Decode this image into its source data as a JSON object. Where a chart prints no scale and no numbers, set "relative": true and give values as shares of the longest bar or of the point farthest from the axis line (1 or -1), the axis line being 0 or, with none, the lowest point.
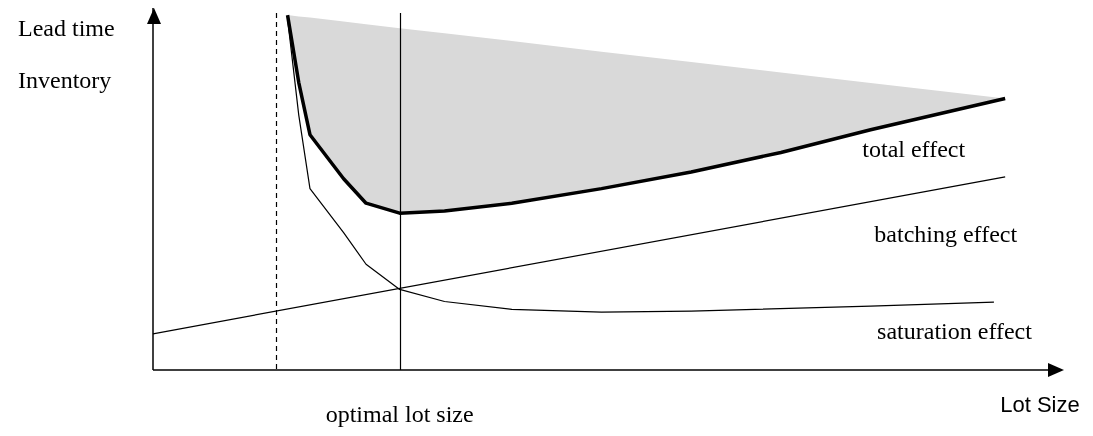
{
  "chart_data": {
    "type": "line",
    "relative": true,
    "xlabel": "Lot Size",
    "ylabel": "Lead time\nInventory",
    "marker": "none",
    "categories": [
      null,
      null,
      null,
      null,
      null,
      null,
      null,
      null,
      null,
      null,
      null,
      null,
      null,
      null,
      null,
      null,
      null,
      null,
      null,
      null,
      null,
      null,
      null,
      null,
      null,
      null,
      null,
      null,
      null,
      null,
      null,
      null,
      null,
      null,
      null,
      null,
      null,
      null,
      null,
      null,
      null,
      null,
      null,
      null,
      null,
      null,
      null,
      null,
      null,
      null,
      null,
      null,
      null,
      null,
      null,
      null,
      null,
      null,
      null,
      null,
      null,
      null,
      null,
      null,
      null,
      null,
      null,
      null,
      null,
      null,
      null,
      null,
      null,
      null,
      null,
      null,
      null,
      null,
      null,
      null,
      null
    ],
    "annotations": [
      "optimal lot size"
    ],
    "series": [
      {
        "name": "total effect",
        "color": "#000000",
        "values": [
          null,
          null,
          null,
          null,
          null,
          null,
          null,
          null,
          null,
          null,
          null,
          null,
          1.0,
          0.81,
          0.663,
          null,
          null,
          0.539,
          null,
          0.47,
          null,
          null,
          0.442,
          null,
          null,
          null,
          0.448,
          null,
          null,
          null,
          null,
          null,
          0.47,
          null,
          null,
          null,
          null,
          null,
          null,
          null,
          0.511,
          null,
          null,
          null,
          null,
          null,
          null,
          null,
          0.558,
          null,
          null,
          null,
          null,
          null,
          null,
          null,
          0.613,
          null,
          null,
          null,
          null,
          null,
          null,
          null,
          0.677,
          null,
          null,
          null,
          null,
          null,
          null,
          null,
          null,
          null,
          null,
          null,
          0.765,
          null,
          null,
          null,
          null
        ],
        "lower": [
          null,
          null,
          null,
          null,
          null,
          null,
          null,
          null,
          null,
          null,
          null,
          null,
          1.0,
          0.81,
          0.663,
          null,
          null,
          0.539,
          null,
          0.47,
          null,
          null,
          0.442,
          null,
          null,
          null,
          0.448,
          null,
          null,
          null,
          null,
          null,
          0.47,
          null,
          null,
          null,
          null,
          null,
          null,
          null,
          0.511,
          null,
          null,
          null,
          null,
          null,
          null,
          null,
          0.558,
          null,
          null,
          null,
          null,
          null,
          null,
          null,
          0.613,
          null,
          null,
          null,
          null,
          null,
          null,
          null,
          0.677,
          null,
          null,
          null,
          null,
          null,
          null,
          null,
          null,
          null,
          null,
          null,
          0.765,
          null,
          null,
          null,
          null
        ],
        "upper": [
          null,
          null,
          null,
          null,
          null,
          null,
          null,
          null,
          null,
          null,
          null,
          null,
          1.0,
          0.996,
          0.993,
          null,
          null,
          0.982,
          null,
          0.974,
          null,
          null,
          0.963,
          null,
          null,
          null,
          0.949,
          null,
          null,
          null,
          null,
          null,
          0.927,
          null,
          null,
          null,
          null,
          null,
          null,
          null,
          0.897,
          null,
          null,
          null,
          null,
          null,
          null,
          null,
          0.868,
          null,
          null,
          null,
          null,
          null,
          null,
          null,
          0.838,
          null,
          null,
          null,
          null,
          null,
          null,
          null,
          0.809,
          null,
          null,
          null,
          null,
          null,
          null,
          null,
          null,
          null,
          null,
          null,
          0.765,
          null,
          null,
          null,
          null
        ]
      },
      {
        "name": "batching effect",
        "color": "#000000",
        "values": [
          0.102,
          null,
          null,
          null,
          null,
          null,
          null,
          null,
          null,
          null,
          null,
          null,
          null,
          null,
          null,
          null,
          null,
          null,
          null,
          null,
          null,
          null,
          null,
          null,
          null,
          null,
          null,
          null,
          null,
          null,
          null,
          null,
          null,
          null,
          null,
          null,
          null,
          null,
          null,
          null,
          null,
          null,
          null,
          null,
          null,
          null,
          null,
          null,
          null,
          null,
          null,
          null,
          null,
          null,
          null,
          null,
          null,
          null,
          null,
          null,
          null,
          null,
          null,
          null,
          null,
          null,
          null,
          null,
          null,
          null,
          null,
          null,
          null,
          null,
          null,
          null,
          0.544,
          null,
          null,
          null,
          null
        ]
      },
      {
        "name": "saturation effect",
        "color": "#000000",
        "values": [
          null,
          null,
          null,
          null,
          null,
          null,
          null,
          null,
          null,
          null,
          null,
          null,
          0.99,
          0.718,
          0.511,
          null,
          null,
          0.387,
          null,
          0.298,
          null,
          null,
          0.227,
          null,
          null,
          null,
          0.193,
          null,
          null,
          null,
          null,
          null,
          0.171,
          null,
          null,
          null,
          null,
          null,
          null,
          null,
          0.163,
          null,
          null,
          null,
          null,
          null,
          null,
          null,
          0.166,
          null,
          null,
          null,
          null,
          null,
          null,
          null,
          null,
          null,
          null,
          null,
          null,
          null,
          null,
          null,
          0.18,
          null,
          null,
          null,
          null,
          null,
          null,
          null,
          null,
          null,
          null,
          0.191,
          null,
          null,
          null,
          null,
          null
        ]
      }
    ]
  }
}
